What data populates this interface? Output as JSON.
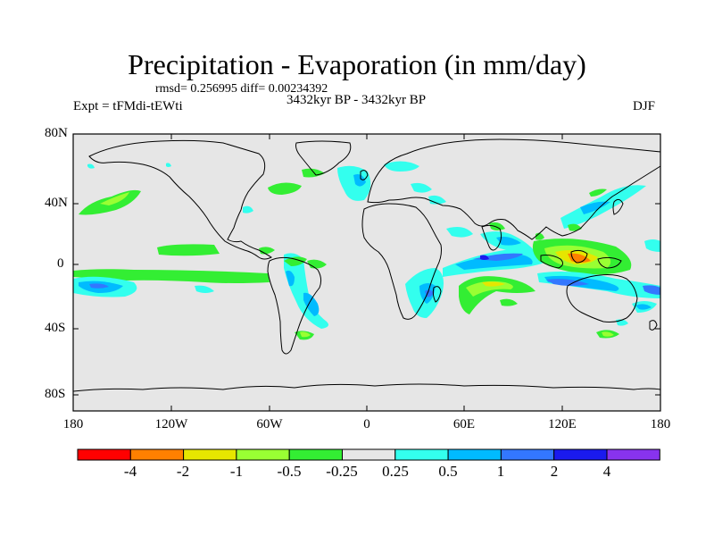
{
  "title": "Precipitation - Evaporation (in mm/day)",
  "stats": "rmsd= 0.256995  diff= 0.00234392",
  "experiment": "Expt = tFMdi-tEWti",
  "period": "3432kyr BP - 3432kyr BP",
  "season": "DJF",
  "lat_labels": [
    "80N",
    "40N",
    "0",
    "40S",
    "80S"
  ],
  "lon_labels": [
    "180",
    "120W",
    "60W",
    "0",
    "60E",
    "120E",
    "180"
  ],
  "colorbar": {
    "labels": [
      "-4",
      "-2",
      "-1",
      "-0.5",
      "-0.25",
      "0.25",
      "0.5",
      "1",
      "2",
      "4"
    ],
    "colors": [
      "#ff0000",
      "#ff8000",
      "#e6e600",
      "#99ff33",
      "#33ee33",
      "#e6e6e6",
      "#33ffee",
      "#00bbff",
      "#3377ff",
      "#1a1aee",
      "#8833ee"
    ]
  }
}
